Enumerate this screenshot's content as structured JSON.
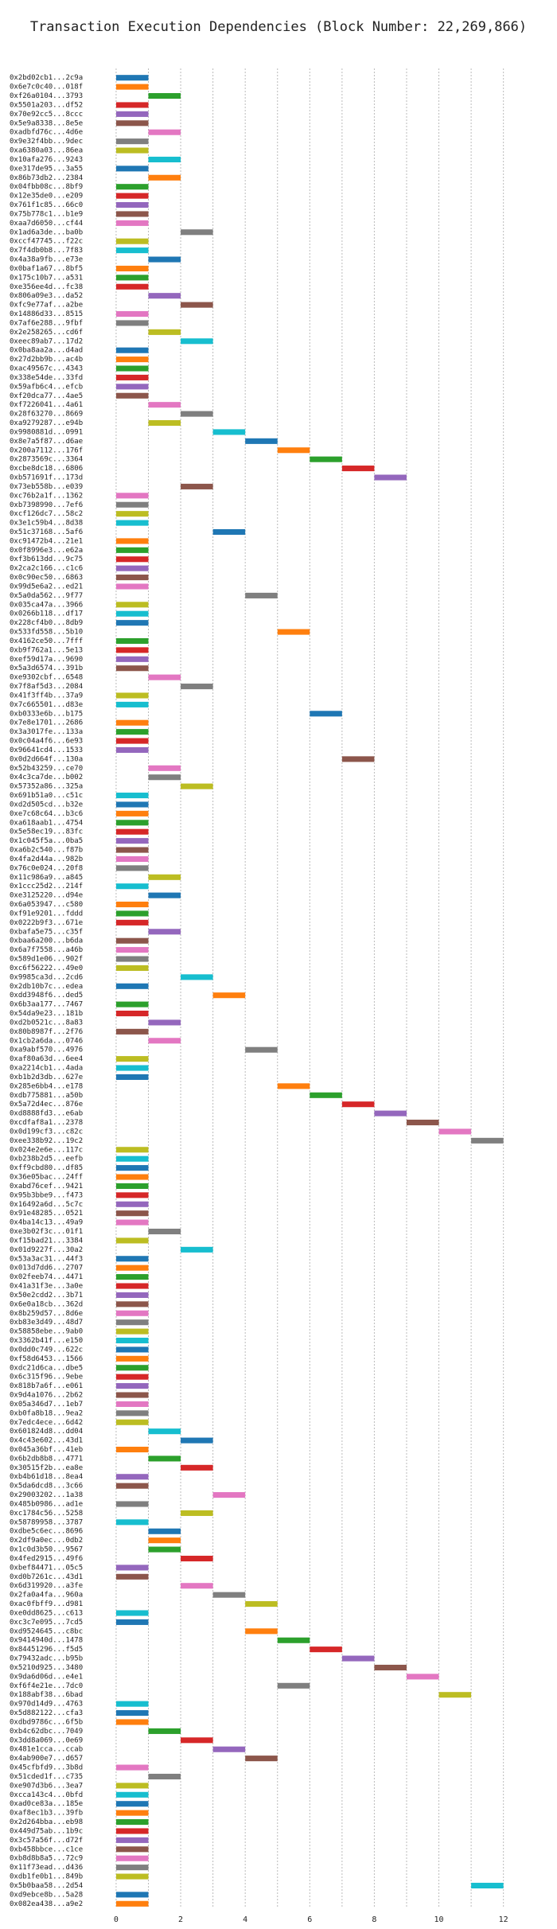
{
  "chart_data": {
    "type": "gantt",
    "title": "Transaction Execution Dependencies (Block Number: 22,269,866)",
    "duration": 1,
    "colors": [
      "#1f77b4",
      "#ff7f0e",
      "#2ca02c",
      "#d62728",
      "#9467bd",
      "#8c564b",
      "#e377c2",
      "#7f7f7f",
      "#bcbd22",
      "#17becf"
    ],
    "xlim": [
      -0.6,
      12.6
    ],
    "xticks": [
      0,
      2,
      4,
      6,
      8,
      10,
      12
    ],
    "xgrid": [
      0,
      1,
      2,
      3,
      4,
      5,
      6,
      7,
      8,
      9,
      10,
      11,
      12
    ],
    "grid": true,
    "categories": [
      "0x2bd02cb1...2c9a",
      "0x6e7c0c40...018f",
      "0xf26a0104...3793",
      "0x5501a203...df52",
      "0x70e92cc5...8ccc",
      "0x5e9a8338...8e5e",
      "0xadbfd76c...4d6e",
      "0x9e32f4bb...9dec",
      "0xa6380a03...86ea",
      "0x10afa276...9243",
      "0xe317de95...3a55",
      "0x86b73db2...2384",
      "0x04fbb08c...8bf9",
      "0x12e35de0...e209",
      "0x761f1c85...66c0",
      "0x75b778c1...b1e9",
      "0xaa7d6050...cf44",
      "0x1ad6a3de...ba0b",
      "0xccf47745...f22c",
      "0x7f4db0b8...7f83",
      "0x4a38a9fb...e73e",
      "0x0baf1a67...8bf5",
      "0x175c10b7...a531",
      "0xe356ee4d...fc38",
      "0x806a09e3...da52",
      "0xfc9e77af...a2be",
      "0x14886d33...8515",
      "0x7af6e288...9fbf",
      "0x2e258265...cd6f",
      "0xeec89ab7...17d2",
      "0x0ba8aa2a...d4ad",
      "0x27d2bb9b...ac4b",
      "0xac49567c...4343",
      "0x338e54de...33fd",
      "0x59afb6c4...efcb",
      "0xf20dca77...4ae5",
      "0xf7226041...4a61",
      "0x28f63270...8669",
      "0xa9279287...e94b",
      "0x9980881d...0991",
      "0x8e7a5f87...d6ae",
      "0x200a7112...176f",
      "0x2873569c...3364",
      "0xcbe8dc18...6806",
      "0xb571691f...173d",
      "0x73eb558b...e039",
      "0xc76b2a1f...1362",
      "0xb7398990...7ef6",
      "0xcf126dc7...58c2",
      "0x3e1c59b4...8d38",
      "0x51c37168...5af6",
      "0xc91472b4...21e1",
      "0x0f8996e3...e62a",
      "0xf3b613dd...9c75",
      "0x2ca2c166...c1c6",
      "0x0c90ec50...6863",
      "0x99d5e6a2...ed21",
      "0x5a0da562...9f77",
      "0x035ca47a...3966",
      "0x0266b118...df17",
      "0x228cf4b0...8db9",
      "0x533fd558...5b10",
      "0x4162ce50...7fff",
      "0xb9f762a1...5e13",
      "0xef59d17a...9690",
      "0x5a3d6574...391b",
      "0xe9302cbf...6548",
      "0x7f8af5d3...2084",
      "0x41f3ff4b...37a9",
      "0x7c665501...d83e",
      "0xb0333e6b...b175",
      "0x7e8e1701...2686",
      "0x3a3017fe...133a",
      "0x0c04a4f6...6e93",
      "0x96641cd4...1533",
      "0x0d2d664f...130a",
      "0x52b43259...ce70",
      "0x4c3ca7de...b002",
      "0x57352a86...325a",
      "0x691b51a0...c51c",
      "0xd2d505cd...b32e",
      "0xe7c68c64...b3c6",
      "0xa618aab1...4754",
      "0x5e58ec19...83fc",
      "0x1c045f5a...0ba5",
      "0xa6b2c540...f87b",
      "0x4fa2d44a...982b",
      "0x76c0e024...20f8",
      "0x11c986a9...a845",
      "0x1ccc25d2...214f",
      "0xe3125220...d94e",
      "0x6a053947...c580",
      "0xf91e9201...fddd",
      "0x0222b9f3...671e",
      "0xbafa5e75...c35f",
      "0xbaa6a200...b6da",
      "0x6a7f7558...a46b",
      "0x589d1e06...902f",
      "0xc6f56222...49e0",
      "0x9985ca3d...2cd6",
      "0x2db10b7c...edea",
      "0xdd3948f6...ded5",
      "0x6b3aa177...7467",
      "0x54da9e23...181b",
      "0xd2b0521c...8a83",
      "0x80b8987f...2f76",
      "0x1cb2a6da...0746",
      "0xa9abf570...4976",
      "0xaf80a63d...6ee4",
      "0xa2214cb1...4ada",
      "0xb1b2d3db...627e",
      "0x285e6bb4...e178",
      "0xdb775881...a50b",
      "0x5a72d4ec...876e",
      "0xd8888fd3...e6ab",
      "0xcdfaf8a1...2378",
      "0x0d199cf3...c82c",
      "0xee338b92...19c2",
      "0x024e2e6e...117c",
      "0xb238b2d5...eefb",
      "0xff9cbd80...df85",
      "0x36e05bac...24ff",
      "0xabd76cef...9421",
      "0x95b3bbe9...f473",
      "0x16492a6d...5c7c",
      "0x91e48285...0521",
      "0x4ba14c13...49a9",
      "0xe3b02f3c...01f1",
      "0xf15bad21...3384",
      "0x01d9227f...30a2",
      "0x53a3ac31...44f3",
      "0x013d7dd6...2707",
      "0x02feeb74...4471",
      "0x41a31f3e...3a0e",
      "0x50e2cdd2...3b71",
      "0x6e0a18cb...362d",
      "0x8b259d57...8d6e",
      "0xb83e3d49...48d7",
      "0x58858ebe...9ab0",
      "0x3362b41f...e150",
      "0x0dd0c749...622c",
      "0xf58d6453...1566",
      "0xdc21d6ca...dbe5",
      "0x6c315f96...9ebe",
      "0x818b7a6f...e061",
      "0x9d4a1076...2b62",
      "0x05a346d7...1eb7",
      "0xb0fa8b18...9ea2",
      "0x7edc4ece...6d42",
      "0x601824d8...dd04",
      "0x4c43e602...43d1",
      "0x045a36bf...41eb",
      "0x6b2db8b8...4771",
      "0x30515f2b...ea8e",
      "0xb4b61d18...8ea4",
      "0x5da6dcd8...3c66",
      "0x29003202...1a38",
      "0x485b0986...ad1e",
      "0xc1784c56...5258",
      "0x58789958...3787",
      "0xdbe5c6ec...8696",
      "0x2df9a0ec...0db2",
      "0x1c0d3b50...9567",
      "0x4fed2915...49f6",
      "0xbef84471...05c5",
      "0xd0b7261c...43d1",
      "0x6d319920...a3fe",
      "0x2fa0a4fa...960a",
      "0xac0fbff9...d981",
      "0xe0dd8625...c613",
      "0xc3c7e095...7cd5",
      "0xd9524645...c8bc",
      "0x9414940d...1478",
      "0x84451296...f5d5",
      "0x79432adc...b95b",
      "0x5210d925...3480",
      "0x9da6d06d...e4e1",
      "0xf6f4e21e...7dc0",
      "0x188abf38...6bad",
      "0x970d14d9...4763",
      "0x5d882122...cfa3",
      "0xdbd9786c...6f5b",
      "0xb4c62dbc...7049",
      "0x3dd8a069...0e69",
      "0x481e1cca...ccab",
      "0x4ab900e7...d657",
      "0x45cfbfd9...3b8d",
      "0x51cded1f...c735",
      "0xe907d3b6...3ea7",
      "0xcca143c4...0bfd",
      "0xad0ce83a...185e",
      "0xaf8ec1b3...39fb",
      "0x2d264bba...eb98",
      "0x449d75ab...1b9c",
      "0x3c57a56f...d72f",
      "0xb458bbce...c1ce",
      "0xb8d8b8a5...72c9",
      "0x11f73ead...d436",
      "0xdb1fe0b1...849b",
      "0x5b0baa58...2d54",
      "0xd9ebce8b...5a28",
      "0x082ea438...a9e2"
    ],
    "values": [
      0,
      0,
      1,
      0,
      0,
      0,
      1,
      0,
      0,
      1,
      0,
      1,
      0,
      0,
      0,
      0,
      0,
      2,
      0,
      0,
      1,
      0,
      0,
      0,
      1,
      2,
      0,
      0,
      1,
      2,
      0,
      0,
      0,
      0,
      0,
      0,
      1,
      2,
      1,
      3,
      4,
      5,
      6,
      7,
      8,
      2,
      0,
      0,
      0,
      0,
      3,
      0,
      0,
      0,
      0,
      0,
      0,
      4,
      0,
      0,
      0,
      5,
      0,
      0,
      0,
      0,
      1,
      2,
      0,
      0,
      6,
      0,
      0,
      0,
      0,
      7,
      1,
      1,
      2,
      0,
      0,
      0,
      0,
      0,
      0,
      0,
      0,
      0,
      1,
      0,
      1,
      0,
      0,
      0,
      1,
      0,
      0,
      0,
      0,
      2,
      0,
      3,
      0,
      0,
      1,
      0,
      1,
      4,
      0,
      0,
      0,
      5,
      6,
      7,
      8,
      9,
      10,
      11,
      0,
      0,
      0,
      0,
      0,
      0,
      0,
      0,
      0,
      1,
      0,
      2,
      0,
      0,
      0,
      0,
      0,
      0,
      0,
      0,
      0,
      0,
      0,
      0,
      0,
      0,
      0,
      0,
      0,
      0,
      0,
      1,
      2,
      0,
      1,
      2,
      0,
      0,
      3,
      0,
      2,
      0,
      1,
      1,
      1,
      2,
      0,
      0,
      2,
      3,
      4,
      0,
      0,
      4,
      5,
      6,
      7,
      8,
      9,
      5,
      10,
      0,
      0,
      0,
      1,
      2,
      3,
      4,
      0,
      1,
      0,
      0,
      0,
      0,
      0,
      0,
      0,
      0,
      0,
      0,
      0,
      11,
      0,
      0
    ]
  }
}
